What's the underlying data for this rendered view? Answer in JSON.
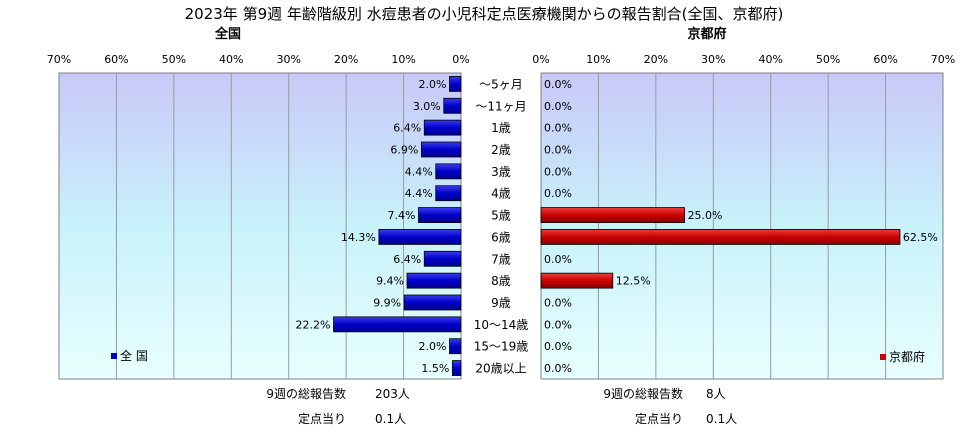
{
  "chart_data": {
    "type": "bar",
    "title": "2023年 第9週 年齢階級別 水痘患者の小児科定点医療機関からの報告割合(全国、京都府)",
    "categories": [
      "～5ヶ月",
      "～11ヶ月",
      "1歳",
      "2歳",
      "3歳",
      "4歳",
      "5歳",
      "6歳",
      "7歳",
      "8歳",
      "9歳",
      "10～14歳",
      "15～19歳",
      "20歳以上"
    ],
    "axis_ticks": [
      "0%",
      "10%",
      "20%",
      "30%",
      "40%",
      "50%",
      "60%",
      "70%"
    ],
    "xlim": [
      0,
      70
    ],
    "unit": "%",
    "series": [
      {
        "name": "全国",
        "legend_label": "全 国",
        "panel_title": "全国",
        "color": "#0000cc",
        "values": [
          2.0,
          3.0,
          6.4,
          6.9,
          4.4,
          4.4,
          7.4,
          14.3,
          6.4,
          9.4,
          9.9,
          22.2,
          2.0,
          1.5
        ],
        "value_labels": [
          "2.0%",
          "3.0%",
          "6.4%",
          "6.9%",
          "4.4%",
          "4.4%",
          "7.4%",
          "14.3%",
          "6.4%",
          "9.4%",
          "9.9%",
          "22.2%",
          "2.0%",
          "1.5%"
        ]
      },
      {
        "name": "京都府",
        "legend_label": "京都府",
        "panel_title": "京都府",
        "color": "#cc0000",
        "values": [
          0.0,
          0.0,
          0.0,
          0.0,
          0.0,
          0.0,
          25.0,
          62.5,
          0.0,
          12.5,
          0.0,
          0.0,
          0.0,
          0.0
        ],
        "value_labels": [
          "0.0%",
          "0.0%",
          "0.0%",
          "0.0%",
          "0.0%",
          "0.0%",
          "25.0%",
          "62.5%",
          "0.0%",
          "12.5%",
          "0.0%",
          "0.0%",
          "0.0%",
          "0.0%"
        ]
      }
    ]
  },
  "footer": {
    "national": {
      "total_label": "9週の総報告数",
      "total_value": "203人",
      "per_site_label": "定点当り",
      "per_site_value": "0.1人"
    },
    "kyoto": {
      "total_label": "9週の総報告数",
      "total_value": "8人",
      "per_site_label": "定点当り",
      "per_site_value": "0.1人"
    }
  }
}
